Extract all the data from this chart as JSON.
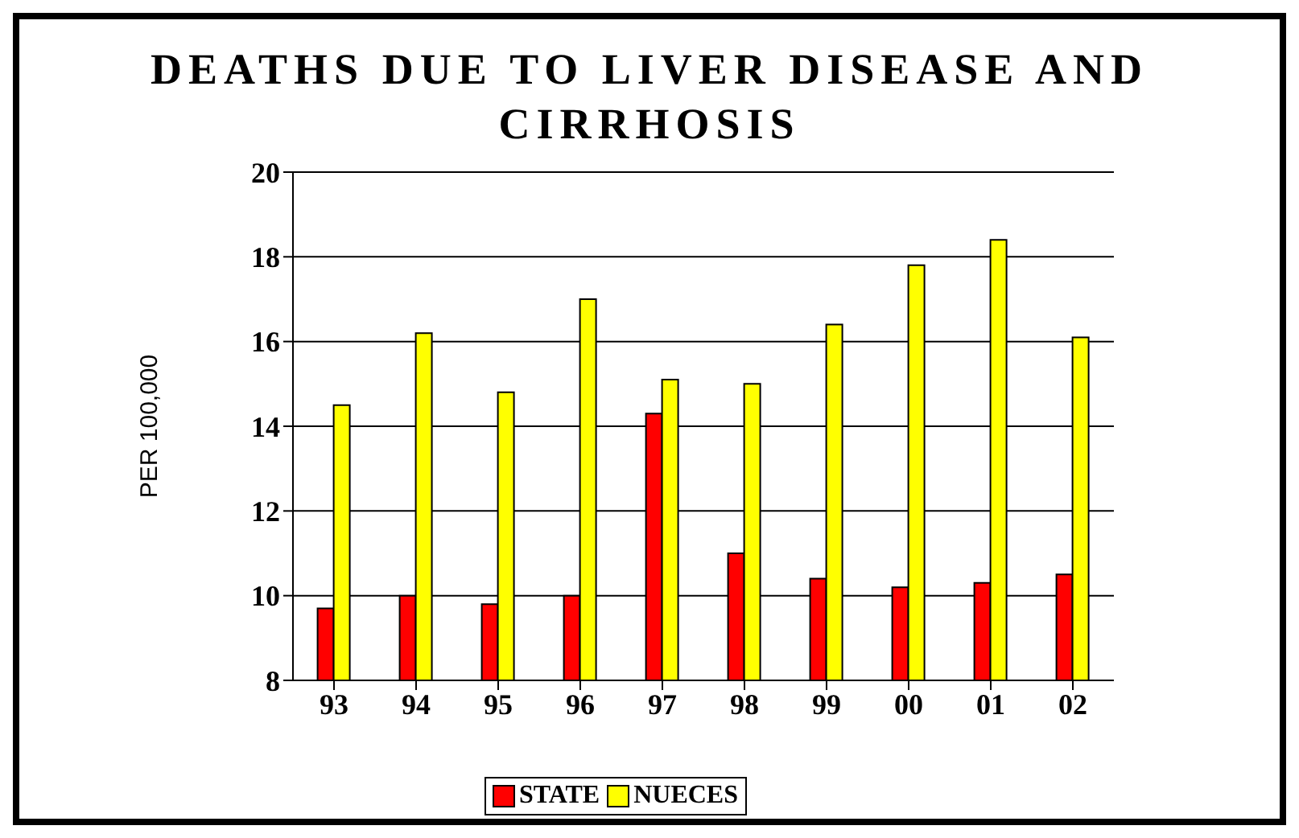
{
  "chart_data": {
    "type": "bar",
    "title": "DEATHS DUE TO LIVER DISEASE AND CIRRHOSIS",
    "ylabel": "PER 100,000",
    "categories": [
      "93",
      "94",
      "95",
      "96",
      "97",
      "98",
      "99",
      "00",
      "01",
      "02"
    ],
    "series": [
      {
        "name": "STATE",
        "color": "#ff0000",
        "values": [
          9.7,
          10,
          9.8,
          10,
          14.3,
          11,
          10.4,
          10.2,
          10.3,
          10.5
        ]
      },
      {
        "name": "NUECES",
        "color": "#ffff00",
        "values": [
          14.5,
          16.2,
          14.8,
          17,
          15.1,
          15,
          16.4,
          17.8,
          18.4,
          16.1
        ]
      }
    ],
    "ylim": [
      8,
      20
    ],
    "yticks": [
      8,
      10,
      12,
      14,
      16,
      18,
      20
    ],
    "grid": "y",
    "legend": "bottom"
  }
}
